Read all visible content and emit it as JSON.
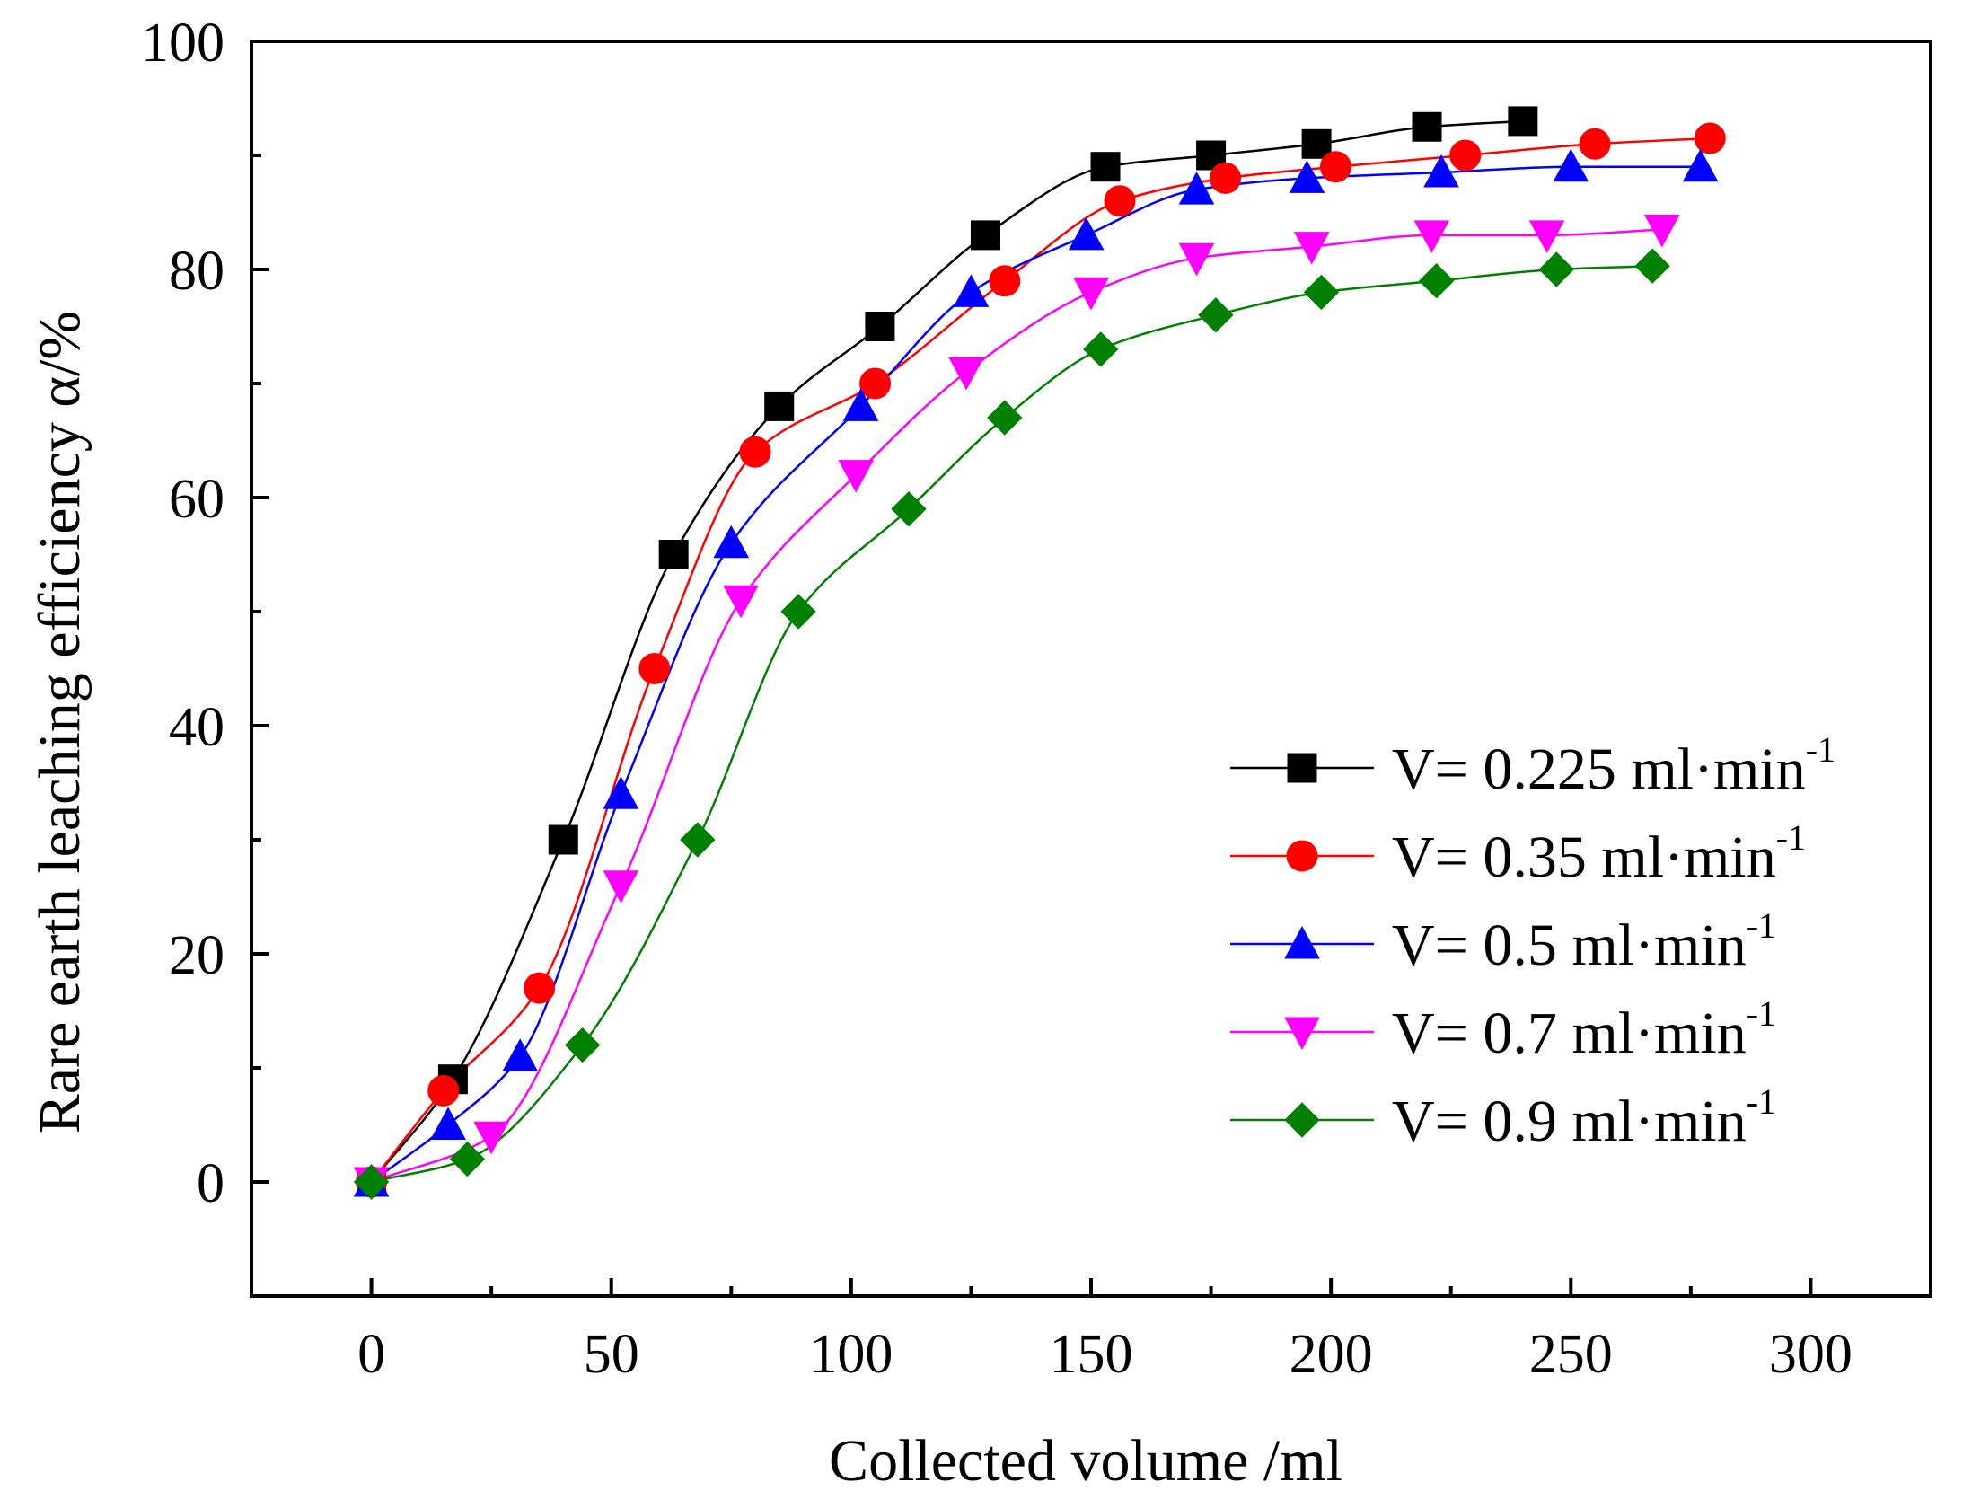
{
  "chart_data": {
    "type": "line",
    "xlabel": "Collected volume /ml",
    "ylabel": "Rare earth leaching efficiency α/%",
    "xlim": [
      -25,
      325
    ],
    "ylim": [
      -10,
      100
    ],
    "xticks": [
      0,
      50,
      100,
      150,
      200,
      250,
      300
    ],
    "yticks": [
      0,
      20,
      40,
      60,
      80,
      100
    ],
    "xtick_labels": [
      "0",
      "50",
      "100",
      "150",
      "200",
      "250",
      "300"
    ],
    "ytick_labels": [
      "0",
      "20",
      "40",
      "60",
      "80",
      "100"
    ],
    "legend_position": "right",
    "series": [
      {
        "name": "V= 0.225 ml·min",
        "name_superscript": "-1",
        "marker": "square",
        "color": "#000000",
        "x": [
          0,
          17,
          40,
          63,
          85,
          106,
          128,
          153,
          175,
          197,
          220,
          240
        ],
        "y": [
          0,
          9,
          30,
          55,
          68,
          75,
          83,
          89,
          90,
          91,
          92.5,
          93
        ]
      },
      {
        "name": "V= 0.35 ml·min",
        "name_superscript": "-1",
        "marker": "circle",
        "color": "#ff0000",
        "x": [
          0,
          15,
          35,
          59,
          80,
          105,
          132,
          156,
          178,
          201,
          228,
          255,
          279
        ],
        "y": [
          0,
          8,
          17,
          45,
          64,
          70,
          79,
          86,
          88,
          89,
          90,
          91,
          91.5
        ]
      },
      {
        "name": "V= 0.5 ml·min",
        "name_superscript": "-1",
        "marker": "triangle-up",
        "color": "#0000ff",
        "x": [
          0,
          16,
          31,
          52,
          75,
          102,
          125,
          149,
          172,
          195,
          223,
          250,
          277
        ],
        "y": [
          0,
          5,
          11,
          34,
          56,
          68,
          78,
          83,
          87,
          88,
          88.5,
          89,
          89
        ]
      },
      {
        "name": "V= 0.7 ml·min",
        "name_superscript": "-1",
        "marker": "triangle-down",
        "color": "#ff00ff",
        "x": [
          0,
          25,
          52,
          77,
          101,
          124,
          150,
          172,
          196,
          221,
          245,
          269
        ],
        "y": [
          0,
          4,
          26,
          51,
          62,
          71,
          78,
          81,
          82,
          83,
          83,
          83.5
        ]
      },
      {
        "name": "V= 0.9 ml·min",
        "name_superscript": "-1",
        "marker": "diamond",
        "color": "#008000",
        "x": [
          0,
          20,
          44,
          68,
          89,
          112,
          132,
          152,
          176,
          198,
          222,
          247,
          267
        ],
        "y": [
          0,
          2,
          12,
          30,
          50,
          59,
          67,
          73,
          76,
          78,
          79,
          80,
          80.3
        ]
      }
    ]
  }
}
